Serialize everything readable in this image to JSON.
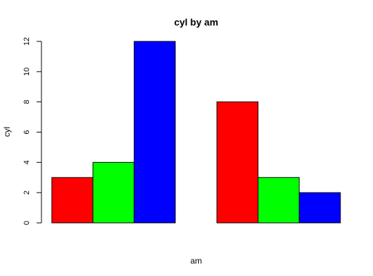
{
  "chart_data": {
    "type": "bar",
    "title": "cyl by am",
    "xlabel": "am",
    "ylabel": "cyl",
    "ylim": [
      0,
      12
    ],
    "yticks": [
      0,
      2,
      4,
      6,
      8,
      10,
      12
    ],
    "grouped": true,
    "series": [
      {
        "values": [
          3,
          8
        ],
        "color": "#ff0000"
      },
      {
        "values": [
          4,
          3
        ],
        "color": "#00ff00"
      },
      {
        "values": [
          12,
          2
        ],
        "color": "#0000ff"
      }
    ]
  }
}
